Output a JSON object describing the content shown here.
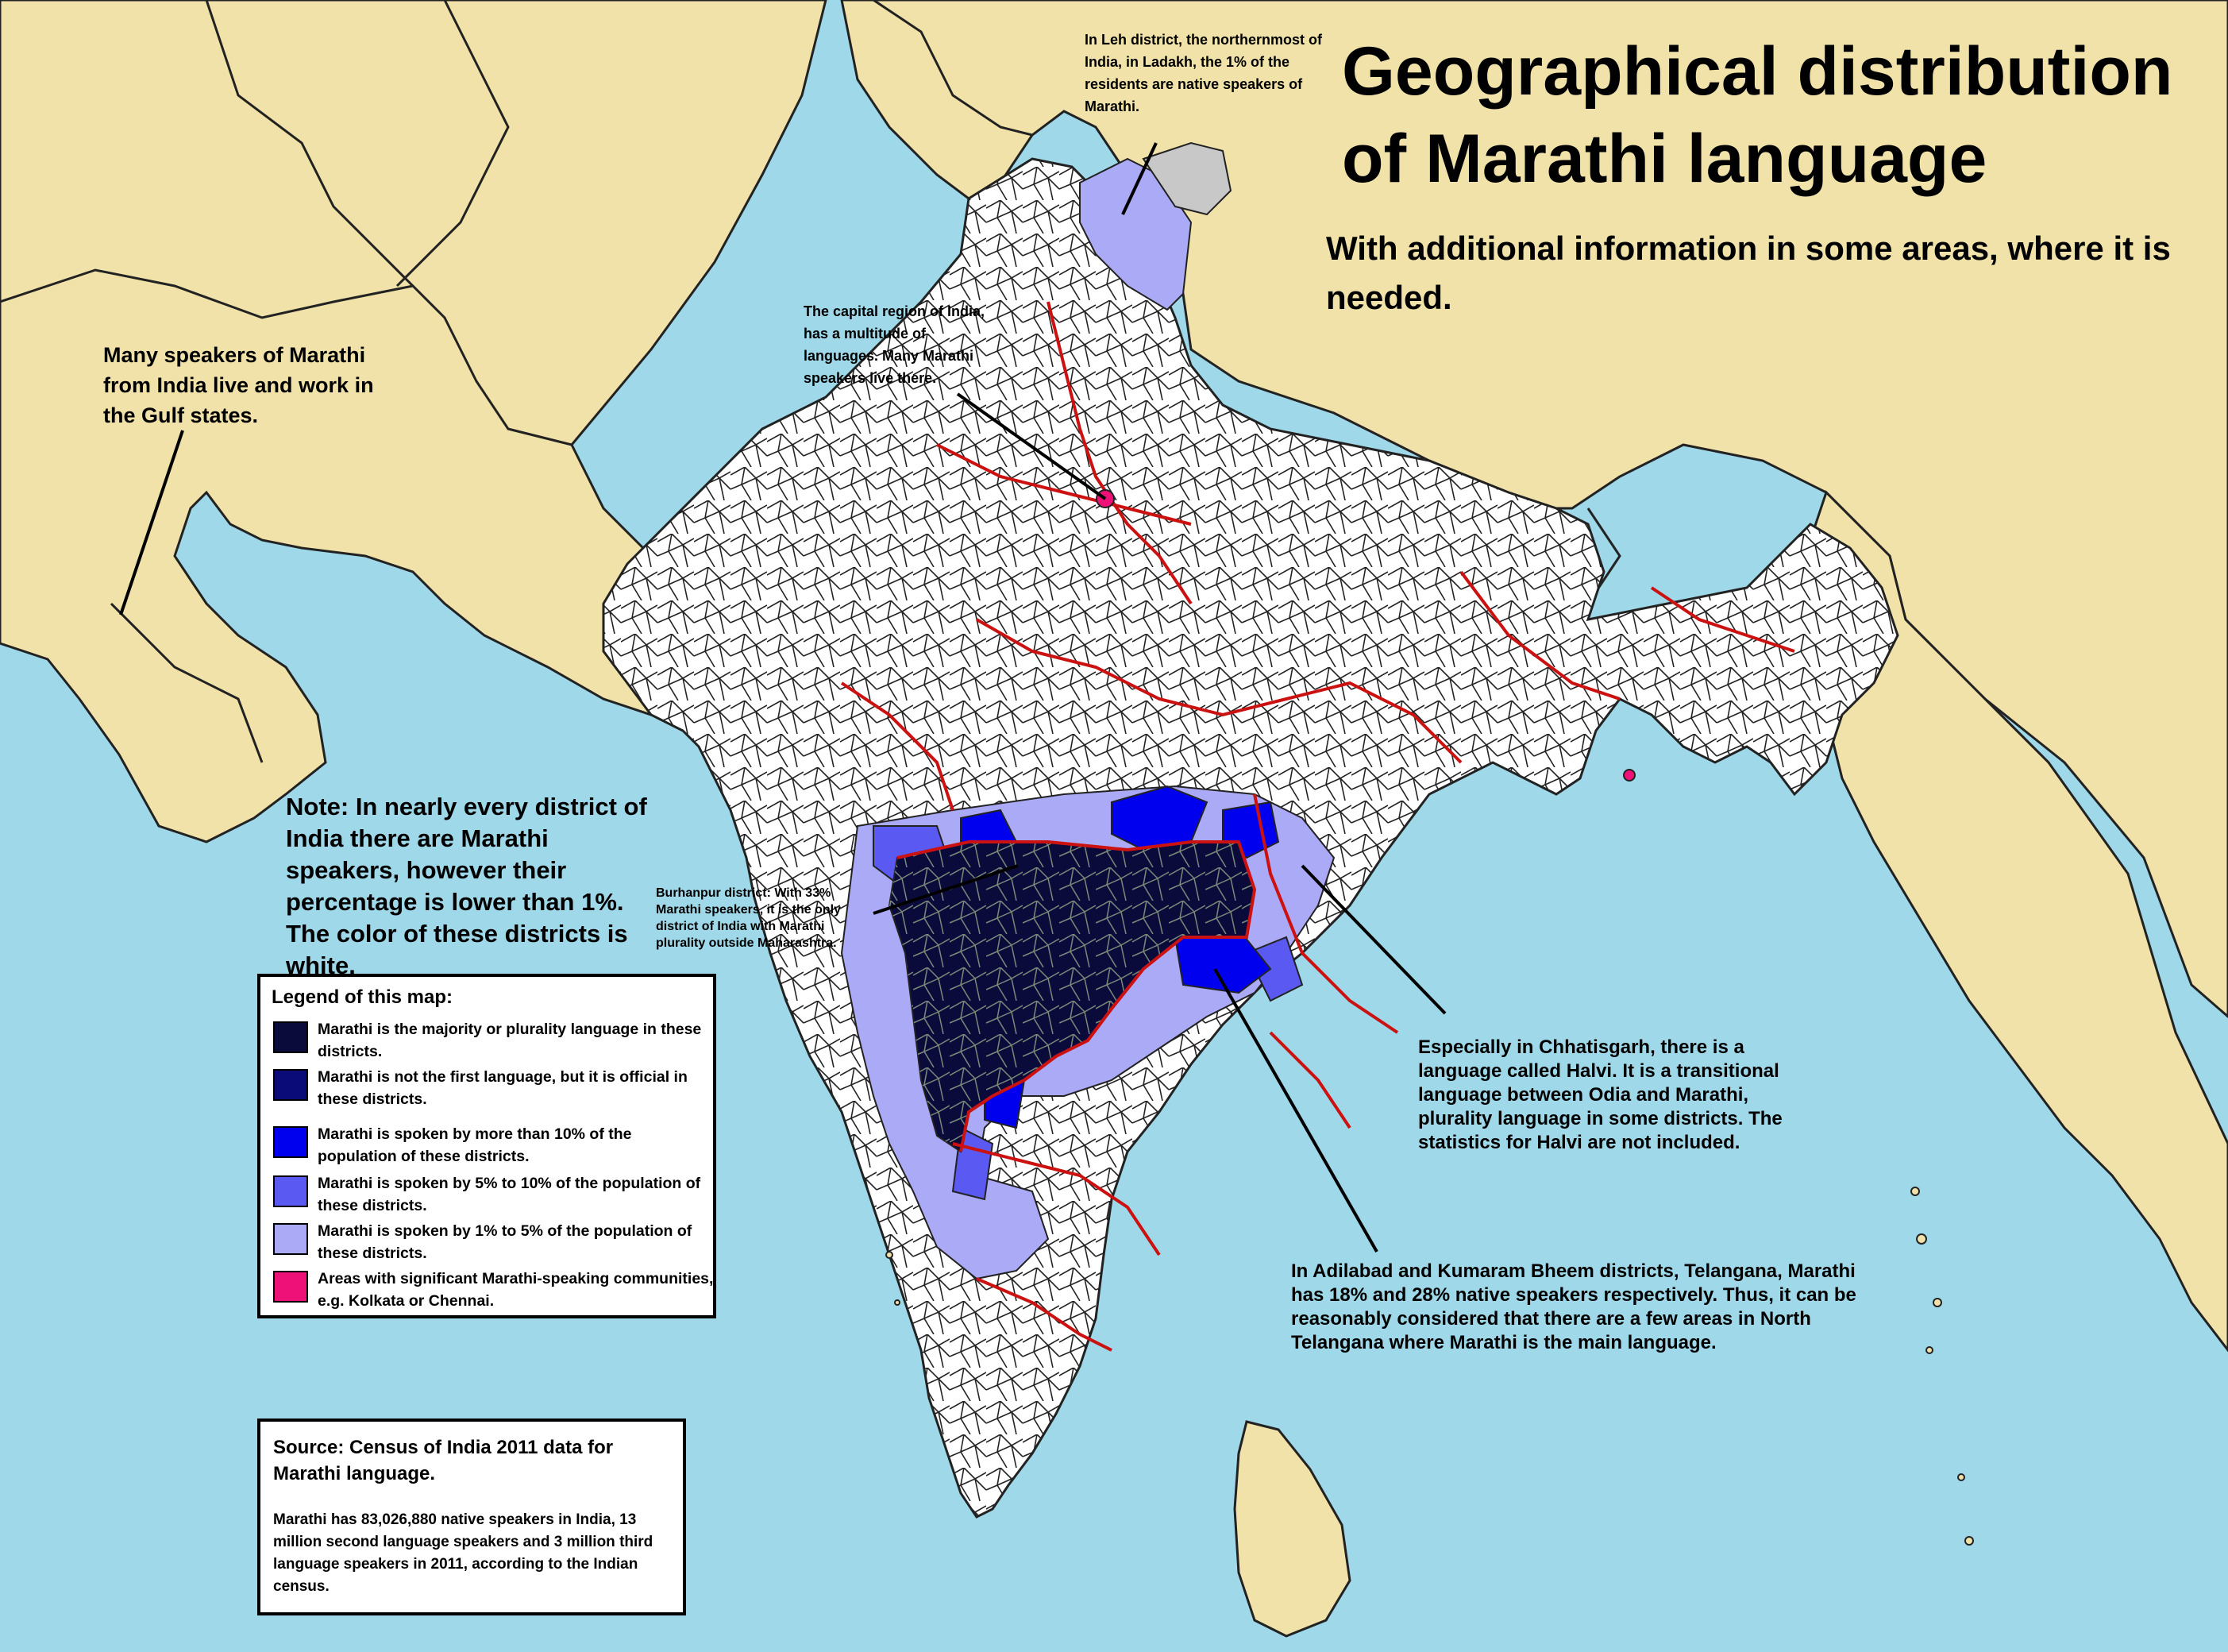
{
  "title": {
    "line1": "Geographical distribution",
    "line2": "of Marathi language",
    "subtitle": "With additional information in some areas, where it is needed."
  },
  "annotations": {
    "leh": "In Leh district, the northernmost of India, in Ladakh, the 1% of the residents are native speakers of Marathi.",
    "delhi": "The capital region of India, has a multitude of languages. Many Marathi speakers live there.",
    "gulf": "Many speakers of Marathi from India live and work in the Gulf states.",
    "note": "Note: In nearly every district of India there are Marathi speakers, however their percentage is lower than 1%. The color of these districts is white.",
    "burhanpur": "Burhanpur district: With 33% Marathi speakers, it is the only district of India with Marathi plurality outside Maharashtra.",
    "halvi": "Especially in Chhatisgarh, there is a language called Halvi. It is a transitional language between Odia and Marathi, plurality language in some districts. The statistics for Halvi are not included.",
    "adilabad": "In Adilabad and Kumaram Bheem districts, Telangana, Marathi has 18% and 28% native speakers respectively. Thus, it can be reasonably considered that there are a few areas in North Telangana where Marathi is the main language."
  },
  "legend": {
    "title": "Legend of this map:",
    "items": [
      {
        "label": "Marathi is the majority or plurality language in these districts.",
        "color": "#0b0b3b"
      },
      {
        "label": "Marathi is not the first language, but it is official in these districts.",
        "color": "#0a0a78"
      },
      {
        "label": "Marathi is spoken by more than 10% of the population of these districts.",
        "color": "#0000ee"
      },
      {
        "label": "Marathi is spoken by 5% to 10% of the population of these districts.",
        "color": "#5a5af2"
      },
      {
        "label": "Marathi is spoken by 1% to 5% of the population of these districts.",
        "color": "#aaaaf6"
      },
      {
        "label": "Areas with significant Marathi-speaking communities, e.g. Kolkata or Chennai.",
        "color": "#ee1177"
      }
    ]
  },
  "source": {
    "title": "Source: Census of India 2011 data for Marathi language.",
    "body": "Marathi has 83,026,880 native speakers in India, 13 million second language speakers and 3 million third language speakers in 2011, according to the Indian census."
  },
  "colors": {
    "sea": "#9fd8e8",
    "land": "#f0e2a9",
    "india": "#ffffff",
    "state_border": "#cc1111",
    "disputed": "#c8c8c8"
  }
}
